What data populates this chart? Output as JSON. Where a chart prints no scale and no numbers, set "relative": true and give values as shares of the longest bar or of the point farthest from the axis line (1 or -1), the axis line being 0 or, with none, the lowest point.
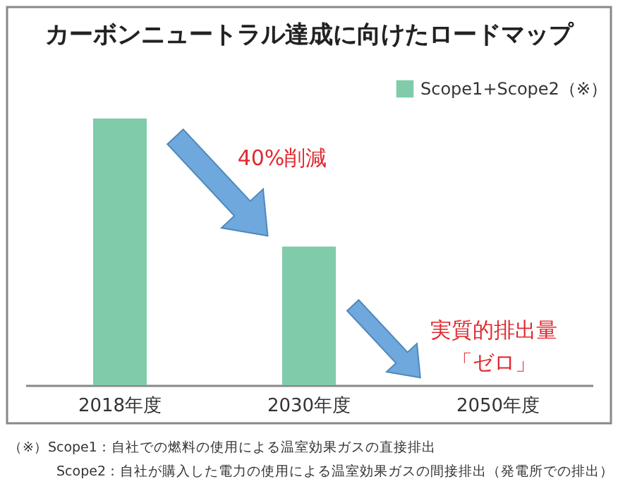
{
  "chart_data": {
    "type": "bar",
    "title": "カーボンニュートラル達成に向けたロードマップ",
    "categories": [
      "2018年度",
      "2030年度",
      "2050年度"
    ],
    "series": [
      {
        "name": "Scope1+Scope2（※）",
        "color": "#7fcbaa",
        "values": [
          1,
          0.52,
          0
        ]
      }
    ],
    "relative": true,
    "legend": "top right",
    "annotations": [
      "40%削減",
      "実質的排出量",
      "「ゼロ」",
      "（※）Scope1：自社での燃料の使用による温室効果ガスの直接排出",
      "Scope2：自社が購入した電力の使用による温室効果ガスの間接排出（発電所での排出）"
    ]
  }
}
